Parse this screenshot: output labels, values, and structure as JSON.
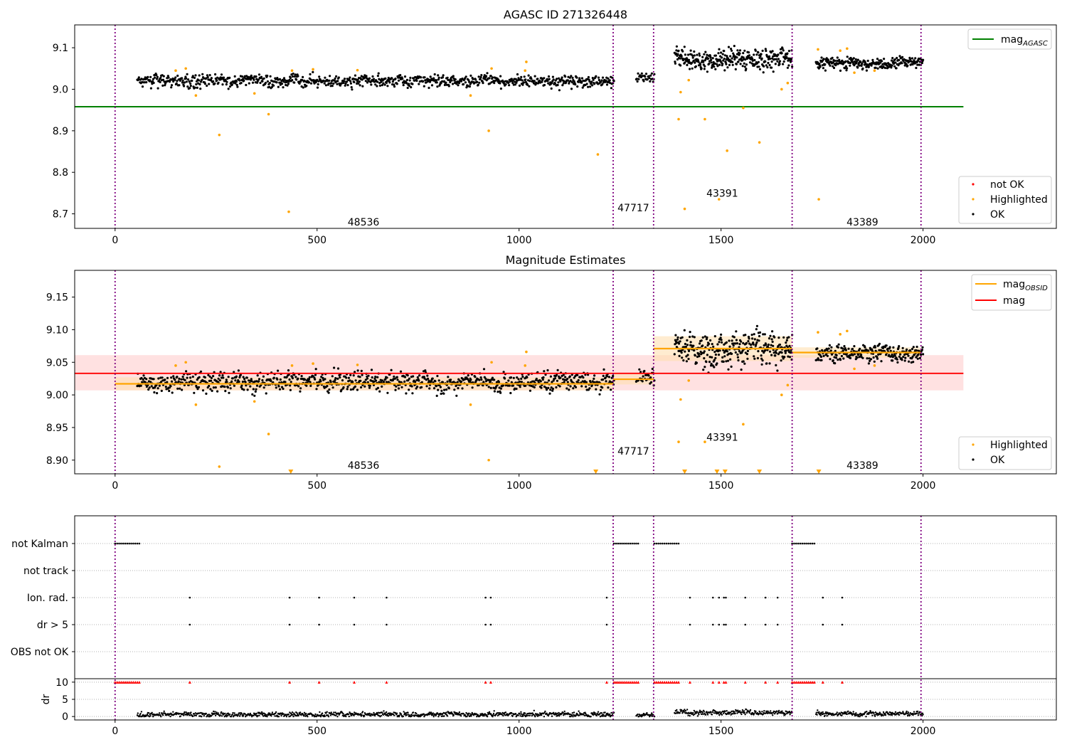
{
  "chart_data": [
    {
      "type": "scatter",
      "title": "AGASC ID 271326448",
      "xlabel": "",
      "ylabel": "",
      "xlim": [
        -100,
        2330
      ],
      "ylim": [
        8.665,
        9.155
      ],
      "xticks": [
        "0",
        "500",
        "1000",
        "1500",
        "2000"
      ],
      "yticks": [
        "8.7",
        "8.8",
        "8.9",
        "9.0",
        "9.1"
      ],
      "xtick_values": [
        0,
        500,
        1000,
        1500,
        2000
      ],
      "ytick_values": [
        8.7,
        8.8,
        8.9,
        9.0,
        9.1
      ],
      "obsid_boundaries": [
        0,
        1233,
        1333,
        1676,
        1995
      ],
      "obsid_labels": [
        {
          "text": "48536",
          "x": 615,
          "y": 8.68
        },
        {
          "text": "47717",
          "x": 1283,
          "y": 8.715
        },
        {
          "text": "43391",
          "x": 1503,
          "y": 8.75
        },
        {
          "text": "43389",
          "x": 1850,
          "y": 8.68
        }
      ],
      "mag_agasc": 8.958,
      "mag_agasc_xrange": [
        -100,
        2100
      ],
      "ok_segments": [
        {
          "x_start": 55,
          "x_end": 1235,
          "points": 900,
          "base": 9.02,
          "amplitude": 0.009
        },
        {
          "x_start": 1290,
          "x_end": 1335,
          "points": 30,
          "base": 9.028,
          "amplitude": 0.008
        },
        {
          "x_start": 1385,
          "x_end": 1676,
          "points": 320,
          "base": 9.072,
          "amplitude": 0.015
        },
        {
          "x_start": 1735,
          "x_end": 2000,
          "points": 250,
          "base": 9.064,
          "amplitude": 0.008
        }
      ],
      "highlighted": [
        [
          150,
          9.045
        ],
        [
          175,
          9.05
        ],
        [
          200,
          8.985
        ],
        [
          258,
          8.89
        ],
        [
          345,
          8.99
        ],
        [
          380,
          8.94
        ],
        [
          430,
          8.705
        ],
        [
          438,
          9.045
        ],
        [
          490,
          9.048
        ],
        [
          600,
          9.046
        ],
        [
          880,
          8.985
        ],
        [
          925,
          8.9
        ],
        [
          932,
          9.05
        ],
        [
          1015,
          9.045
        ],
        [
          1018,
          9.066
        ],
        [
          1195,
          8.843
        ],
        [
          1395,
          8.928
        ],
        [
          1400,
          8.993
        ],
        [
          1410,
          8.712
        ],
        [
          1420,
          9.022
        ],
        [
          1460,
          8.928
        ],
        [
          1495,
          8.735
        ],
        [
          1515,
          8.852
        ],
        [
          1555,
          8.955
        ],
        [
          1595,
          8.872
        ],
        [
          1650,
          9.0
        ],
        [
          1665,
          9.015
        ],
        [
          1740,
          9.096
        ],
        [
          1742,
          8.735
        ],
        [
          1795,
          9.093
        ],
        [
          1812,
          9.098
        ],
        [
          1830,
          9.04
        ],
        [
          1880,
          9.045
        ]
      ],
      "legend_upper": {
        "entries": [
          "mag_AGASC"
        ],
        "placement": "upper right"
      },
      "legend_lower": {
        "entries": [
          "not OK",
          "Highlighted",
          "OK"
        ],
        "placement": "lower right"
      },
      "colors": {
        "ok": "#000000",
        "highlighted": "#ffa500",
        "not_ok": "#ff0000",
        "mag_agasc": "#008000",
        "boundary": "#800080"
      }
    },
    {
      "type": "scatter",
      "title": "Magnitude Estimates",
      "xlabel": "",
      "ylabel": "",
      "xlim": [
        -100,
        2330
      ],
      "ylim": [
        8.879,
        9.191
      ],
      "xticks": [
        "0",
        "500",
        "1000",
        "1500",
        "2000"
      ],
      "yticks": [
        "8.90",
        "8.95",
        "9.00",
        "9.05",
        "9.10",
        "9.15"
      ],
      "xtick_values": [
        0,
        500,
        1000,
        1500,
        2000
      ],
      "ytick_values": [
        8.9,
        8.95,
        9.0,
        9.05,
        9.1,
        9.15
      ],
      "mag": 9.033,
      "mag_band": [
        9.007,
        9.061
      ],
      "mag_xrange": [
        -100,
        2100
      ],
      "mag_obsid": [
        {
          "x_start": 0,
          "x_end": 1233,
          "value": 9.017,
          "band": [
            9.007,
            9.027
          ]
        },
        {
          "x_start": 1233,
          "x_end": 1333,
          "value": 9.024,
          "band": [
            9.016,
            9.032
          ]
        },
        {
          "x_start": 1333,
          "x_end": 1676,
          "value": 9.071,
          "band": [
            9.052,
            9.09
          ]
        },
        {
          "x_start": 1676,
          "x_end": 1995,
          "value": 9.065,
          "band": [
            9.057,
            9.073
          ]
        }
      ],
      "below_limit_markers": [
        435,
        1190,
        1410,
        1490,
        1510,
        1595,
        1742
      ],
      "obsid_labels": [
        {
          "text": "48536",
          "x": 615,
          "y": 8.892
        },
        {
          "text": "47717",
          "x": 1283,
          "y": 8.914
        },
        {
          "text": "43391",
          "x": 1503,
          "y": 8.935
        },
        {
          "text": "43389",
          "x": 1850,
          "y": 8.892
        }
      ],
      "legend_upper": {
        "entries": [
          "mag_OBSID",
          "mag"
        ],
        "placement": "upper right"
      },
      "legend_lower": {
        "entries": [
          "Highlighted",
          "OK"
        ],
        "placement": "lower right"
      },
      "colors": {
        "mag_obsid": "#ffa500",
        "mag": "#ff0000",
        "mag_band": "#ffc8c8",
        "obsid_band": "#ffe0b0"
      }
    },
    {
      "type": "scatter",
      "title": "",
      "category_rows": [
        "not Kalman",
        "not track",
        "Ion. rad.",
        "dr > 5",
        "OBS not OK"
      ],
      "kalman_ranges": [
        [
          0,
          60
        ],
        [
          1235,
          1295
        ],
        [
          1335,
          1395
        ],
        [
          1676,
          1735
        ]
      ],
      "ion_rad_x": [
        185,
        432,
        505,
        592,
        672,
        917,
        930,
        1217,
        1423,
        1480,
        1495,
        1507,
        1512,
        1560,
        1610,
        1640,
        1752,
        1800
      ],
      "dr_panel": {
        "ylabel": "dr",
        "yticks": [
          "0",
          "5",
          "10"
        ],
        "ytick_values": [
          0,
          5,
          10
        ],
        "ylim": [
          -1,
          11
        ],
        "clip_value": 10,
        "clipped_x": [
          185,
          432,
          505,
          592,
          672,
          917,
          930,
          1217,
          1423,
          1480,
          1495,
          1507,
          1512,
          1560,
          1610,
          1640,
          1752,
          1800
        ],
        "segments": [
          {
            "x_start": 55,
            "x_end": 1235,
            "base": 0.6
          },
          {
            "x_start": 1290,
            "x_end": 1335,
            "base": 0.6
          },
          {
            "x_start": 1385,
            "x_end": 1676,
            "base": 1.2
          },
          {
            "x_start": 1735,
            "x_end": 2000,
            "base": 0.8
          }
        ]
      },
      "xlim": [
        -100,
        2330
      ],
      "xticks": [
        "0",
        "500",
        "1000",
        "1500",
        "2000"
      ],
      "xtick_values": [
        0,
        500,
        1000,
        1500,
        2000
      ]
    }
  ],
  "legend_labels": {
    "mag_agasc_main": "mag",
    "mag_agasc_sub": "AGASC",
    "mag_obsid_main": "mag",
    "mag_obsid_sub": "OBSID",
    "mag": "mag",
    "not_ok": "not OK",
    "highlighted": "Highlighted",
    "ok": "OK"
  }
}
